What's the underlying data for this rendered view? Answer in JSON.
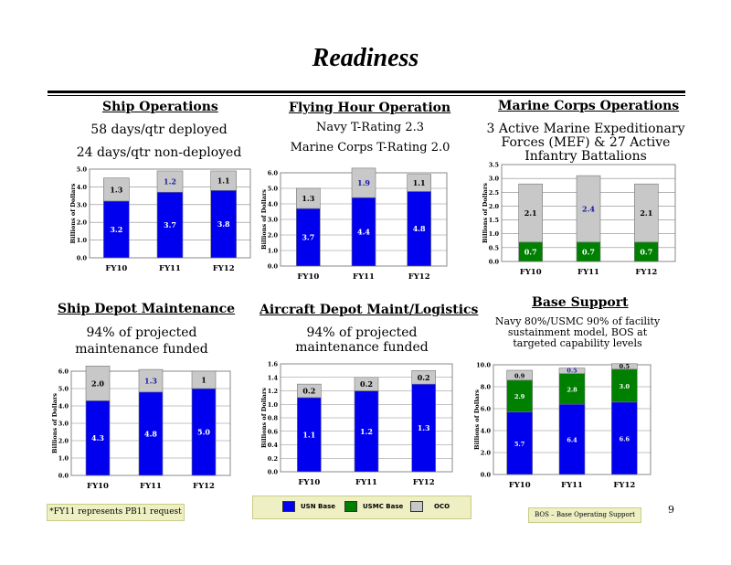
{
  "title": "Readiness",
  "headers": {
    "ship_ops": "Ship Operations",
    "flying": "Flying Hour Operation",
    "marine": "Marine Corps Operations",
    "ship_depot": "Ship Depot Maintenance",
    "aircraft_depot": "Aircraft Depot Maint/Logistics",
    "base": "Base Support"
  },
  "notes": {
    "ship_ops_1": "58 days/qtr deployed",
    "ship_ops_2": "24 days/qtr non-deployed",
    "flying_1": "Navy T-Rating 2.3",
    "flying_2": "Marine Corps T-Rating 2.0",
    "marine_1": "3 Active Marine Expeditionary",
    "marine_2": "Forces (MEF) & 27 Active",
    "marine_3": "Infantry Battalions",
    "ship_depot_1": "94% of projected",
    "ship_depot_2": "maintenance funded",
    "aircraft_depot_1": "94% of projected",
    "aircraft_depot_2": "maintenance funded",
    "base_1": "Navy 80%/USMC 90% of facility",
    "base_2": "sustainment model, BOS at",
    "base_3": "targeted capability levels"
  },
  "legend": {
    "usn": "USN Base",
    "usmc": "USMC Base",
    "oco": "OCO"
  },
  "footnote": "*FY11 represents PB11 request",
  "bos_note": "BOS – Base Operating Support",
  "page_number": "9",
  "colors": {
    "usn": "#0000ee",
    "usmc": "#008000",
    "oco": "#c8c8c8",
    "label_on_blue": "#ffffff",
    "label_on_gray": "#000000",
    "label_fy11_oco": "#1a1aa8"
  },
  "chart_data": [
    {
      "id": "ship_ops",
      "type": "bar",
      "stacked": true,
      "categories": [
        "FY10",
        "FY11",
        "FY12"
      ],
      "ylabel": "Billions of Dollars",
      "ylim": [
        0,
        5.0
      ],
      "yticks": [
        "0.0",
        "1.0",
        "2.0",
        "3.0",
        "4.0",
        "5.0"
      ],
      "series": [
        {
          "key": "usn",
          "values": [
            3.2,
            3.7,
            3.8
          ],
          "labels": [
            "3.2",
            "3.7",
            "3.8"
          ]
        },
        {
          "key": "oco",
          "values": [
            1.3,
            1.2,
            1.1
          ],
          "labels": [
            "1.3",
            "1.2",
            "1.1"
          ]
        }
      ]
    },
    {
      "id": "flying",
      "type": "bar",
      "stacked": true,
      "categories": [
        "FY10",
        "FY11",
        "FY12"
      ],
      "ylabel": "Billions of Dollars",
      "ylim": [
        0,
        6.0
      ],
      "yticks": [
        "0.0",
        "1.0",
        "2.0",
        "3.0",
        "4.0",
        "5.0",
        "6.0"
      ],
      "series": [
        {
          "key": "usn",
          "values": [
            3.7,
            4.4,
            4.8
          ],
          "labels": [
            "3.7",
            "4.4",
            "4.8"
          ]
        },
        {
          "key": "oco",
          "values": [
            1.3,
            1.9,
            1.1
          ],
          "labels": [
            "1.3",
            "1.9",
            "1.1"
          ]
        }
      ]
    },
    {
      "id": "marine",
      "type": "bar",
      "stacked": true,
      "categories": [
        "FY10",
        "FY11",
        "FY12"
      ],
      "ylabel": "Billions of Dollars",
      "ylim": [
        0,
        3.5
      ],
      "yticks": [
        "0.0",
        "0.5",
        "1.0",
        "1.5",
        "2.0",
        "2.5",
        "3.0",
        "3.5"
      ],
      "series": [
        {
          "key": "usmc",
          "values": [
            0.7,
            0.7,
            0.7
          ],
          "labels": [
            "0.7",
            "0.7",
            "0.7"
          ]
        },
        {
          "key": "oco",
          "values": [
            2.1,
            2.4,
            2.1
          ],
          "labels": [
            "2.1",
            "2.4",
            "2.1"
          ]
        }
      ]
    },
    {
      "id": "ship_depot",
      "type": "bar",
      "stacked": true,
      "categories": [
        "FY10",
        "FY11",
        "FY12"
      ],
      "ylabel": "Billions of Dollars",
      "ylim": [
        0,
        6.0
      ],
      "yticks": [
        "0.0",
        "1.0",
        "2.0",
        "3.0",
        "4.0",
        "5.0",
        "6.0"
      ],
      "series": [
        {
          "key": "usn",
          "values": [
            4.3,
            4.8,
            5.0
          ],
          "labels": [
            "4.3",
            "4.8",
            "5.0"
          ]
        },
        {
          "key": "oco",
          "values": [
            2.0,
            1.3,
            1.0
          ],
          "labels": [
            "2.0",
            "1.3",
            "1"
          ]
        }
      ]
    },
    {
      "id": "aircraft_depot",
      "type": "bar",
      "stacked": true,
      "categories": [
        "FY10",
        "FY11",
        "FY12"
      ],
      "ylabel": "Billions of Dollars",
      "ylim": [
        0,
        1.6
      ],
      "yticks": [
        "0.0",
        "0.2",
        "0.4",
        "0.6",
        "0.8",
        "1.0",
        "1.2",
        "1.4",
        "1.6"
      ],
      "series": [
        {
          "key": "usn",
          "values": [
            1.1,
            1.2,
            1.3
          ],
          "labels": [
            "1.1",
            "1.2",
            "1.3"
          ]
        },
        {
          "key": "oco",
          "values": [
            0.2,
            0.2,
            0.2
          ],
          "labels": [
            "0.2",
            "0.2",
            "0.2"
          ]
        }
      ]
    },
    {
      "id": "base",
      "type": "bar",
      "stacked": true,
      "categories": [
        "FY10",
        "FY11",
        "FY12"
      ],
      "ylabel": "Billions of Dollars",
      "ylim": [
        0,
        10.0
      ],
      "yticks": [
        "0.0",
        "2.0",
        "4.0",
        "6.0",
        "8.0",
        "10.0"
      ],
      "series": [
        {
          "key": "usn",
          "values": [
            5.7,
            6.4,
            6.6
          ],
          "labels": [
            "5.7",
            "6.4",
            "6.6"
          ]
        },
        {
          "key": "usmc",
          "values": [
            2.9,
            2.8,
            3.0
          ],
          "labels": [
            "2.9",
            "2.8",
            "3.0"
          ]
        },
        {
          "key": "oco",
          "values": [
            0.9,
            0.5,
            0.5
          ],
          "labels": [
            "0.9",
            "0.5",
            "0.5"
          ]
        }
      ]
    }
  ]
}
